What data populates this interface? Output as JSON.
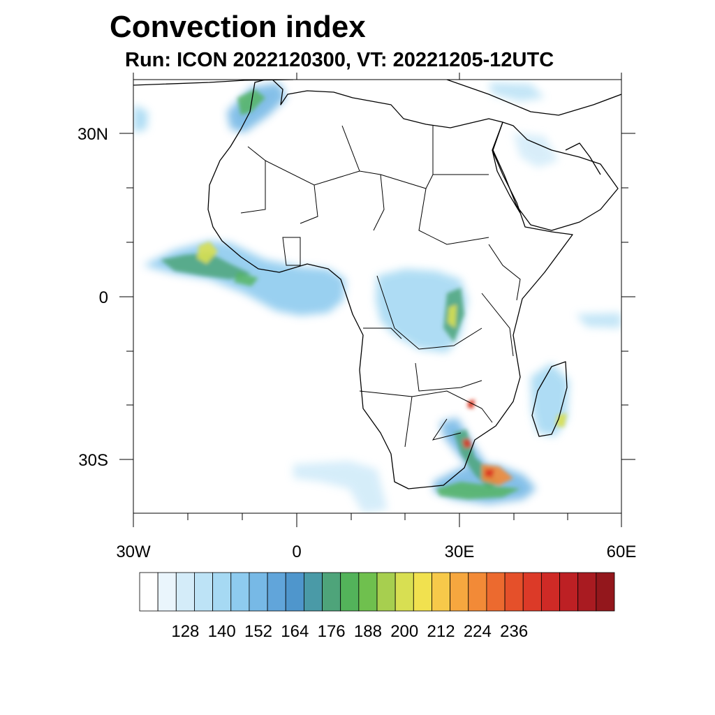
{
  "header": {
    "title": "Convection index",
    "subtitle": "Run: ICON 2022120300,  VT: 20221205-12UTC"
  },
  "map": {
    "lon_labels": [
      "30W",
      "0",
      "30E",
      "60E"
    ],
    "lat_labels": [
      "30N",
      "0",
      "30S"
    ]
  },
  "colorbar": {
    "labels": [
      "128",
      "140",
      "152",
      "164",
      "176",
      "188",
      "200",
      "212",
      "224",
      "236"
    ],
    "colors": [
      "#ffffff",
      "#eaf5fc",
      "#d4ecf9",
      "#bde3f6",
      "#a6d9f3",
      "#8ecbef",
      "#77b9e6",
      "#61a5da",
      "#4f96cc",
      "#4a9aa7",
      "#4ea47a",
      "#53b35a",
      "#6fc04e",
      "#a7cf4f",
      "#d8df52",
      "#f1e14f",
      "#f7c94a",
      "#f6a73f",
      "#f28a37",
      "#ec6a2f",
      "#e5502a",
      "#dc3a28",
      "#cf2a26",
      "#bd2024",
      "#a91b21",
      "#93171c"
    ]
  }
}
